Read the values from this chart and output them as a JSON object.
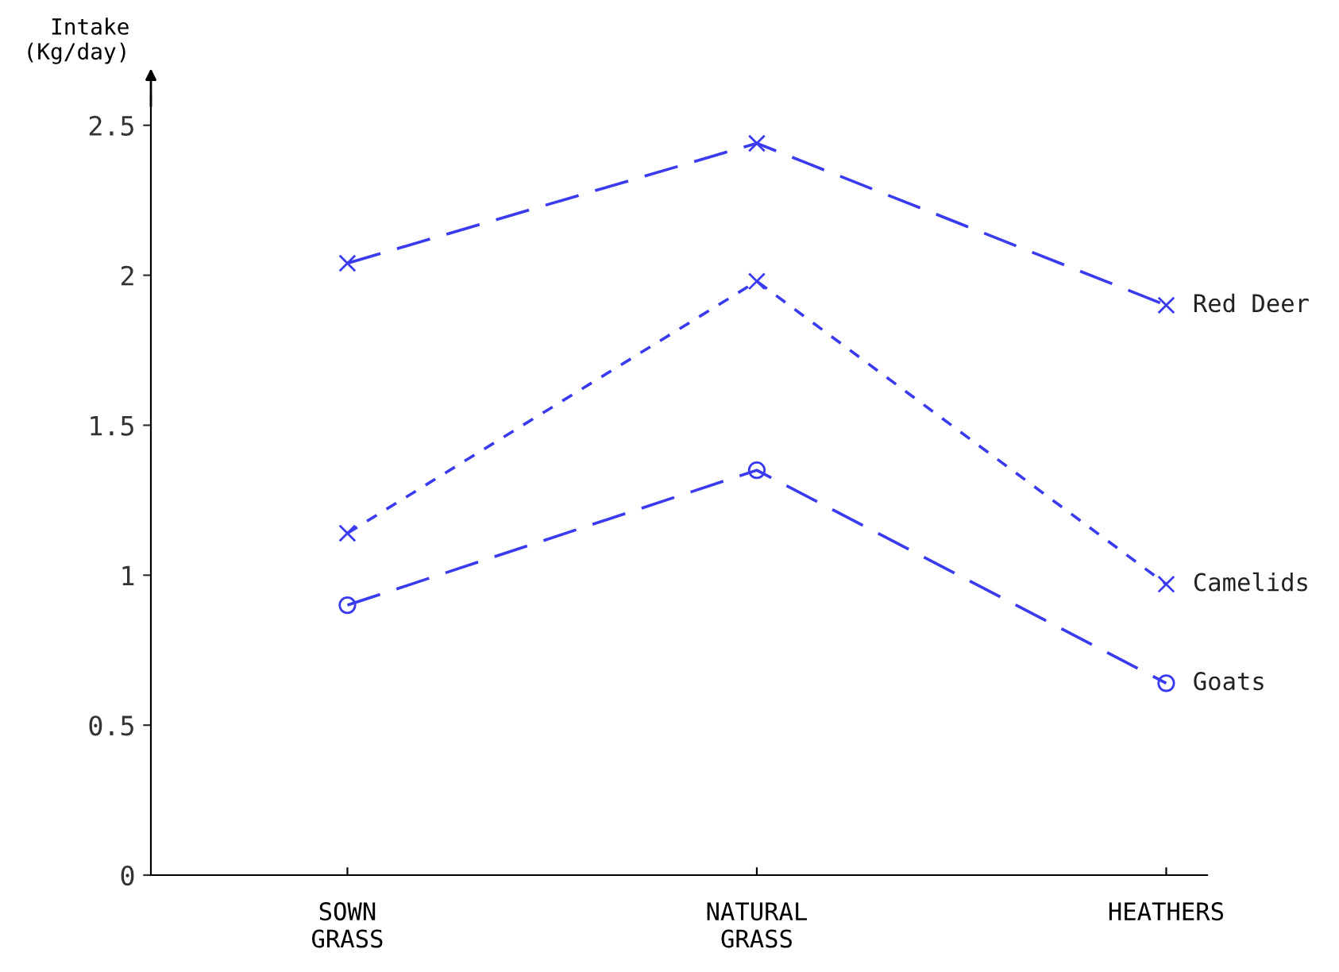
{
  "chart_data": {
    "type": "line",
    "ylabel": "Intake\n(Kg/day)",
    "categories": [
      "SOWN\nGRASS",
      "NATURAL\nGRASS",
      "HEATHERS"
    ],
    "series": [
      {
        "name": "Red Deer",
        "color": "#3a3aee",
        "values": [
          2.04,
          2.44,
          1.9
        ],
        "marker": "cross",
        "line_style": "dashed"
      },
      {
        "name": "Camelids",
        "color": "#3a3aee",
        "values": [
          1.14,
          1.98,
          0.97
        ],
        "marker": "cross",
        "line_style": "dotted"
      },
      {
        "name": "Goats",
        "color": "#3a3aee",
        "values": [
          0.9,
          1.35,
          0.64
        ],
        "marker": "circle",
        "line_style": "dashed"
      }
    ],
    "ylim": [
      0,
      2.6
    ],
    "yticks": [
      0,
      0.5,
      1,
      1.5,
      2,
      2.5
    ],
    "grid": false,
    "legend": false
  }
}
